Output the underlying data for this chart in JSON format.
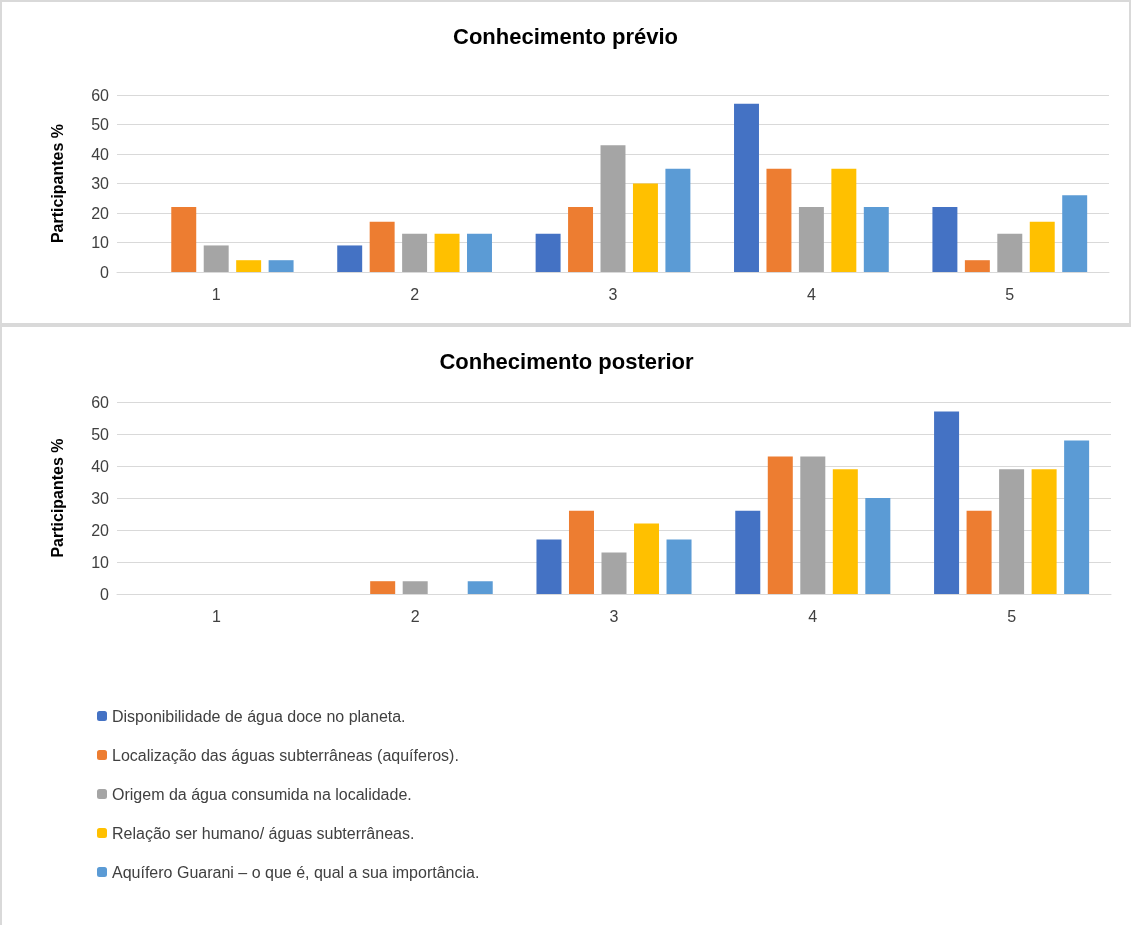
{
  "chart_data": [
    {
      "type": "bar",
      "title": "Conhecimento prévio",
      "ylabel": "Participantes %",
      "categories": [
        "1",
        "2",
        "3",
        "4",
        "5"
      ],
      "ylim": [
        0,
        60
      ],
      "yticks": [
        0,
        10,
        20,
        30,
        40,
        50,
        60
      ],
      "grid": "y",
      "legend": false,
      "series": [
        {
          "color": "#4472c4",
          "values": [
            0,
            9,
            13,
            57,
            22
          ]
        },
        {
          "color": "#ed7d31",
          "values": [
            22,
            17,
            22,
            35,
            4
          ]
        },
        {
          "color": "#a5a5a5",
          "values": [
            9,
            13,
            43,
            22,
            13
          ]
        },
        {
          "color": "#ffc000",
          "values": [
            4,
            13,
            30,
            35,
            17
          ]
        },
        {
          "color": "#5b9bd5",
          "values": [
            4,
            13,
            35,
            22,
            26
          ]
        }
      ]
    },
    {
      "type": "bar",
      "title": "Conhecimento posterior",
      "ylabel": "Participantes %",
      "categories": [
        "1",
        "2",
        "3",
        "4",
        "5"
      ],
      "ylim": [
        0,
        60
      ],
      "yticks": [
        0,
        10,
        20,
        30,
        40,
        50,
        60
      ],
      "grid": "y",
      "legend": "bottom left",
      "series": [
        {
          "name": "Disponibilidade de água doce no planeta.",
          "color": "#4472c4",
          "values": [
            0,
            0,
            17,
            26,
            57
          ]
        },
        {
          "name": "Localização das águas subterrâneas (aquíferos).",
          "color": "#ed7d31",
          "values": [
            0,
            4,
            26,
            43,
            26
          ]
        },
        {
          "name": "Origem da água consumida na localidade.",
          "color": "#a5a5a5",
          "values": [
            0,
            4,
            13,
            43,
            39
          ]
        },
        {
          "name": "Relação ser humano/ águas subterrâneas.",
          "color": "#ffc000",
          "values": [
            0,
            0,
            22,
            39,
            39
          ]
        },
        {
          "name": "Aquífero Guarani – o que é, qual a sua importância.",
          "color": "#5b9bd5",
          "values": [
            0,
            4,
            17,
            30,
            48
          ]
        }
      ]
    }
  ]
}
